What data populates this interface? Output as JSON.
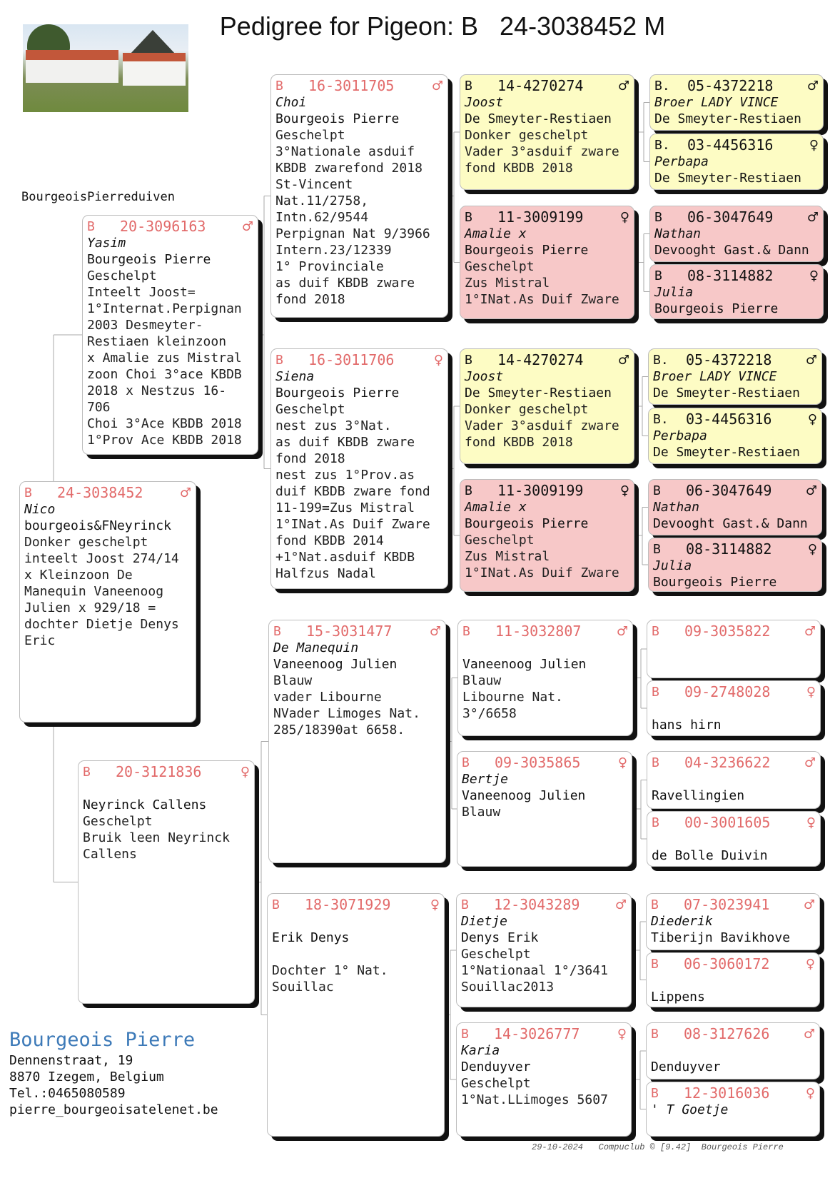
{
  "title": "Pedigree for Pigeon: B   24-3038452 M",
  "loft_name": "BourgeoisPierreduiven",
  "colors": {
    "ring_red": "#e26a6a",
    "yellow_box": "#fdfcc4",
    "pink_box": "#f7c8c8",
    "breeder_blue": "#3d7ab8"
  },
  "pigeons": {
    "subject": {
      "country": "B",
      "ring": "24-3038452",
      "sex": "♂",
      "name": "Nico",
      "owner": "bourgeois&FNeyrinck",
      "lines": [
        "Donker geschelpt",
        "inteelt Joost 274/14",
        "x Kleinzoon De",
        "Manequin Vaneenoog",
        "Julien x 929/18 =",
        "dochter Dietje Denys",
        "Eric"
      ],
      "style": "white"
    },
    "sire": {
      "country": "B",
      "ring": "20-3096163",
      "sex": "♂",
      "name": "Yasim",
      "owner": "Bourgeois Pierre",
      "lines": [
        "Geschelpt",
        "Inteelt Joost=",
        "1°Internat.Perpignan",
        "2003 Desmeyter-",
        "Restiaen kleinzoon",
        "x Amalie zus Mistral",
        "zoon Choi 3°ace KBDB",
        "2018 x Nestzus 16-",
        "706",
        "Choi 3°Ace KBDB 2018",
        "1°Prov Ace KBDB 2018"
      ],
      "style": "white"
    },
    "dam": {
      "country": "B",
      "ring": "20-3121836",
      "sex": "♀",
      "name": "",
      "owner": "Neyrinck Callens",
      "lines": [
        "Geschelpt",
        "Bruik leen Neyrinck",
        "Callens"
      ],
      "style": "white"
    },
    "ss": {
      "country": "B",
      "ring": "16-3011705",
      "sex": "♂",
      "name": "Choi",
      "owner": "Bourgeois Pierre",
      "lines": [
        "Geschelpt",
        "3°Nationale asduif",
        "KBDB zwarefond 2018",
        "St-Vincent",
        "Nat.11/2758,",
        "Intn.62/9544",
        "Perpignan Nat 9/3966",
        "Intern.23/12339",
        "1° Provinciale",
        "as duif KBDB zware",
        "fond 2018"
      ],
      "style": "white"
    },
    "sd": {
      "country": "B",
      "ring": "16-3011706",
      "sex": "♀",
      "name": "Siena",
      "owner": "Bourgeois Pierre",
      "lines": [
        "Geschelpt",
        "nest zus 3°Nat.",
        "as duif KBDB zware",
        "fond 2018",
        "nest zus 1°Prov.as",
        "duif KBDB zware fond",
        "11-199=Zus Mistral",
        "1°INat.As Duif Zware",
        "fond KBDB 2014",
        "+1°Nat.asduif KBDB",
        "Halfzus Nadal"
      ],
      "style": "white"
    },
    "ds": {
      "country": "B",
      "ring": "15-3031477",
      "sex": "♂",
      "name": "De Manequin",
      "owner": "Vaneenoog Julien",
      "lines": [
        "Blauw",
        "vader Libourne",
        "NVader Limoges Nat.",
        "285/18390at 6658."
      ],
      "style": "white"
    },
    "dd": {
      "country": "B",
      "ring": "18-3071929",
      "sex": "♀",
      "name": "",
      "owner": "Erik Denys",
      "lines": [
        "",
        "Dochter 1° Nat.",
        "Souillac"
      ],
      "style": "white"
    },
    "sss": {
      "country": "B",
      "ring": "14-4270274",
      "sex": "♂",
      "name": "Joost",
      "owner": "De Smeyter-Restiaen",
      "lines": [
        "Donker geschelpt",
        "Vader 3°asduif zware",
        "fond KBDB 2018"
      ],
      "style": "yellow"
    },
    "ssd": {
      "country": "B",
      "ring": "11-3009199",
      "sex": "♀",
      "name": "Amalie x",
      "owner": "Bourgeois Pierre",
      "lines": [
        "Geschelpt",
        "Zus Mistral",
        "1°INat.As Duif Zware"
      ],
      "style": "pink"
    },
    "sds": {
      "country": "B",
      "ring": "14-4270274",
      "sex": "♂",
      "name": "Joost",
      "owner": "De Smeyter-Restiaen",
      "lines": [
        "Donker geschelpt",
        "Vader 3°asduif zware",
        "fond KBDB 2018"
      ],
      "style": "yellow"
    },
    "sdd": {
      "country": "B",
      "ring": "11-3009199",
      "sex": "♀",
      "name": "Amalie x",
      "owner": "Bourgeois Pierre",
      "lines": [
        "Geschelpt",
        "Zus Mistral",
        "1°INat.As Duif Zware"
      ],
      "style": "pink"
    },
    "dss": {
      "country": "B",
      "ring": "11-3032807",
      "sex": "♂",
      "name": "",
      "owner": "Vaneenoog Julien",
      "lines": [
        "Blauw",
        "Libourne Nat.",
        "3°/6658"
      ],
      "style": "white"
    },
    "dsd": {
      "country": "B",
      "ring": "09-3035865",
      "sex": "♀",
      "name": "Bertje",
      "owner": "Vaneenoog Julien",
      "lines": [
        "Blauw"
      ],
      "style": "white"
    },
    "dds": {
      "country": "B",
      "ring": "12-3043289",
      "sex": "♂",
      "name": "Dietje",
      "owner": "Denys Erik",
      "lines": [
        "Geschelpt",
        "1°Nationaal 1°/3641",
        "Souillac2013"
      ],
      "style": "white"
    },
    "ddd": {
      "country": "B",
      "ring": "14-3026777",
      "sex": "♀",
      "name": "Karia",
      "owner": "Denduyver",
      "lines": [
        "Geschelpt",
        "1°Nat.LLimoges 5607"
      ],
      "style": "white"
    },
    "ssss": {
      "country": "B.",
      "ring": "05-4372218",
      "sex": "♂",
      "name": "Broer LADY VINCE",
      "owner": "De Smeyter-Restiaen",
      "lines": [],
      "style": "yellow"
    },
    "sssd": {
      "country": "B.",
      "ring": "03-4456316",
      "sex": "♀",
      "name": "Perbapa",
      "owner": "De Smeyter-Restiaen",
      "lines": [],
      "style": "yellow"
    },
    "ssds": {
      "country": "B",
      "ring": "06-3047649",
      "sex": "♂",
      "name": "Nathan",
      "owner": "Devooght Gast.& Dann",
      "lines": [],
      "style": "pink"
    },
    "ssdd": {
      "country": "B",
      "ring": "08-3114882",
      "sex": "♀",
      "name": "Julia",
      "owner": "Bourgeois Pierre",
      "lines": [],
      "style": "pink"
    },
    "sdss": {
      "country": "B.",
      "ring": "05-4372218",
      "sex": "♂",
      "name": "Broer LADY VINCE",
      "owner": "De Smeyter-Restiaen",
      "lines": [],
      "style": "yellow"
    },
    "sdsd": {
      "country": "B.",
      "ring": "03-4456316",
      "sex": "♀",
      "name": "Perbapa",
      "owner": "De Smeyter-Restiaen",
      "lines": [],
      "style": "yellow"
    },
    "sdds": {
      "country": "B",
      "ring": "06-3047649",
      "sex": "♂",
      "name": "Nathan",
      "owner": "Devooght Gast.& Dann",
      "lines": [],
      "style": "pink"
    },
    "sddd": {
      "country": "B",
      "ring": "08-3114882",
      "sex": "♀",
      "name": "Julia",
      "owner": "Bourgeois Pierre",
      "lines": [],
      "style": "pink"
    },
    "dsss": {
      "country": "B",
      "ring": "09-3035822",
      "sex": "♂",
      "name": "",
      "owner": "",
      "lines": [],
      "style": "white"
    },
    "dssd": {
      "country": "B",
      "ring": "09-2748028",
      "sex": "♀",
      "name": "",
      "owner": "hans hirn",
      "lines": [],
      "style": "white"
    },
    "dsds": {
      "country": "B",
      "ring": "04-3236622",
      "sex": "♂",
      "name": "",
      "owner": "Ravellingien",
      "lines": [],
      "style": "white"
    },
    "dsdd": {
      "country": "B",
      "ring": "00-3001605",
      "sex": "♀",
      "name": "",
      "owner": "de Bolle Duivin",
      "lines": [],
      "style": "white"
    },
    "ddss": {
      "country": "B",
      "ring": "07-3023941",
      "sex": "♂",
      "name": "Diederik",
      "owner": "Tiberijn Bavikhove",
      "lines": [],
      "style": "white"
    },
    "ddsd": {
      "country": "B",
      "ring": "06-3060172",
      "sex": "♀",
      "name": "",
      "owner": "Lippens",
      "lines": [],
      "style": "white"
    },
    "ddds": {
      "country": "B",
      "ring": "08-3127626",
      "sex": "♂",
      "name": "",
      "owner": "Denduyver",
      "lines": [],
      "style": "white"
    },
    "dddd": {
      "country": "B",
      "ring": "12-3016036",
      "sex": "♀",
      "name": "' T Goetje",
      "owner": "",
      "lines": [],
      "style": "white"
    }
  },
  "breeder": {
    "name": "Bourgeois Pierre",
    "street": "Dennenstraat, 19",
    "city": "8870  Izegem, Belgium",
    "phone": "Tel.:0465080589",
    "email": "pierre_bourgeoisatelenet.be"
  },
  "footer": "29-10-2024   Compuclub © [9.42]  Bourgeois Pierre"
}
